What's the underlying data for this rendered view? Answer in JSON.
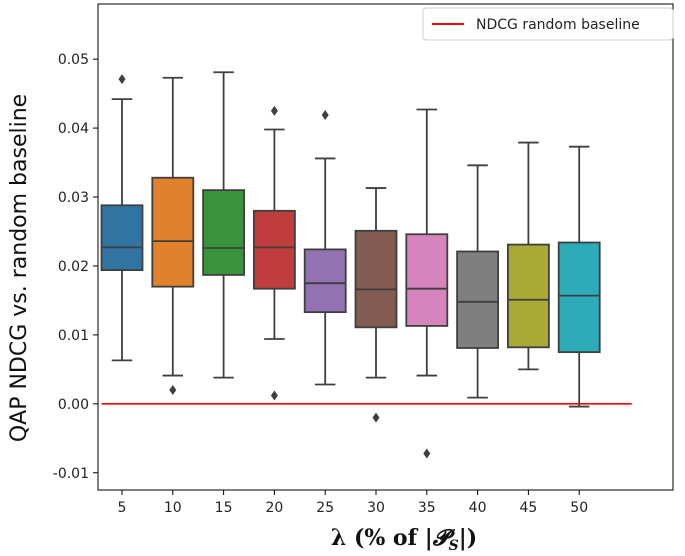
{
  "chart_data": {
    "type": "box",
    "xlabel": "λ (% of |𝓟S|)",
    "xlabel_parts": {
      "main": "λ (% of |",
      "script": "𝓟",
      "sub": "S",
      "end": "|)"
    },
    "ylabel": "QAP NDCG vs. random baseline",
    "ylim": [
      -0.0125,
      0.058
    ],
    "yticks": [
      -0.01,
      0.0,
      0.01,
      0.02,
      0.03,
      0.04,
      0.05
    ],
    "ytick_labels": [
      "-0.01",
      "0.00",
      "0.01",
      "0.02",
      "0.03",
      "0.04",
      "0.05"
    ],
    "categories": [
      "5",
      "10",
      "15",
      "20",
      "25",
      "30",
      "35",
      "40",
      "45",
      "50"
    ],
    "boxes": [
      {
        "label": "5",
        "whislo": 0.0063,
        "q1": 0.0194,
        "med": 0.0227,
        "q3": 0.0288,
        "whishi": 0.0442,
        "fliers": [
          0.0471
        ],
        "color": "#3274a1"
      },
      {
        "label": "10",
        "whislo": 0.0041,
        "q1": 0.017,
        "med": 0.0236,
        "q3": 0.0328,
        "whishi": 0.0473,
        "fliers": [
          0.002
        ],
        "color": "#e1812c"
      },
      {
        "label": "15",
        "whislo": 0.0038,
        "q1": 0.0187,
        "med": 0.0226,
        "q3": 0.031,
        "whishi": 0.0481,
        "fliers": [],
        "color": "#3a923a"
      },
      {
        "label": "20",
        "whislo": 0.0094,
        "q1": 0.0167,
        "med": 0.0227,
        "q3": 0.028,
        "whishi": 0.0398,
        "fliers": [
          0.0425,
          0.0012
        ],
        "color": "#c03d3e"
      },
      {
        "label": "25",
        "whislo": 0.0028,
        "q1": 0.0133,
        "med": 0.0175,
        "q3": 0.0224,
        "whishi": 0.0356,
        "fliers": [
          0.0419
        ],
        "color": "#9372b2"
      },
      {
        "label": "30",
        "whislo": 0.0038,
        "q1": 0.0111,
        "med": 0.0166,
        "q3": 0.0251,
        "whishi": 0.0313,
        "fliers": [
          -0.002
        ],
        "color": "#845b53"
      },
      {
        "label": "35",
        "whislo": 0.0041,
        "q1": 0.0113,
        "med": 0.0167,
        "q3": 0.0246,
        "whishi": 0.0427,
        "fliers": [
          -0.0072
        ],
        "color": "#d684bd"
      },
      {
        "label": "40",
        "whislo": 0.0009,
        "q1": 0.0081,
        "med": 0.0148,
        "q3": 0.0221,
        "whishi": 0.0346,
        "fliers": [],
        "color": "#7f7f7f"
      },
      {
        "label": "45",
        "whislo": 0.005,
        "q1": 0.0082,
        "med": 0.0151,
        "q3": 0.0231,
        "whishi": 0.0379,
        "fliers": [],
        "color": "#a9aa35"
      },
      {
        "label": "50",
        "whislo": -0.0004,
        "q1": 0.0075,
        "med": 0.0157,
        "q3": 0.0234,
        "whishi": 0.0373,
        "fliers": [],
        "color": "#2eabb8"
      }
    ],
    "baseline": {
      "value": 0.0,
      "label": "NDCG random baseline",
      "color": "#ff0000"
    },
    "legend_position": "top-right"
  }
}
